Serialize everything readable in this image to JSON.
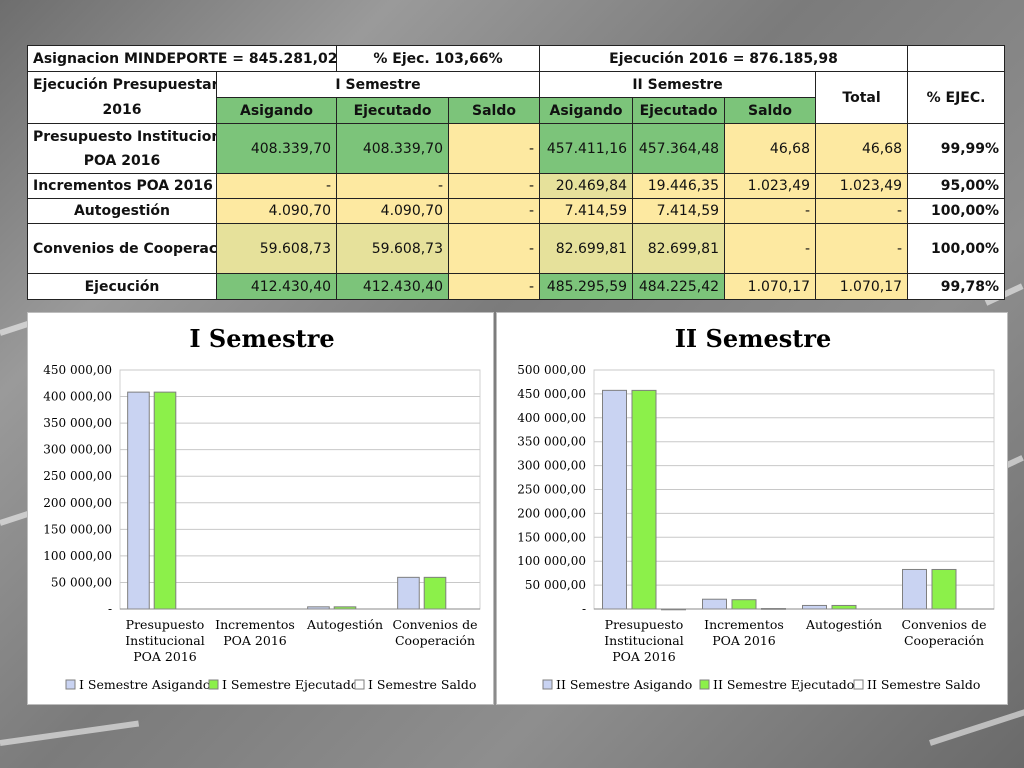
{
  "table": {
    "top_row": {
      "asignacion": "Asignacion MINDEPORTE = 845.281,02",
      "pct_ejec": "% Ejec. 103,66%",
      "ejecucion": "Ejecución 2016 = 876.185,98"
    },
    "header": {
      "row_label_line1": "Ejecución Presupuestaria",
      "row_label_line2": "2016",
      "sem1": "I Semestre",
      "sem2": "II Semestre",
      "total": "Total",
      "pct": "% EJEC.",
      "sub": [
        "Asigando",
        "Ejecutado",
        "Saldo",
        "Asigando",
        "Ejecutado",
        "Saldo"
      ]
    },
    "rows": [
      {
        "label_line1": "Presupuesto Institucional",
        "label_line2": "POA 2016",
        "values": [
          "408.339,70",
          "408.339,70",
          "-",
          "457.411,16",
          "457.364,48",
          "46,68",
          "46,68",
          "99,99%"
        ]
      },
      {
        "label_line1": "Incrementos POA 2016",
        "label_line2": "",
        "values": [
          "-",
          "-",
          "-",
          "20.469,84",
          "19.446,35",
          "1.023,49",
          "1.023,49",
          "95,00%"
        ]
      },
      {
        "label_line1": "Autogestión",
        "label_line2": "",
        "values": [
          "4.090,70",
          "4.090,70",
          "-",
          "7.414,59",
          "7.414,59",
          "-",
          "-",
          "100,00%"
        ]
      },
      {
        "label_line1": "Convenios de Cooperación",
        "label_line2": "",
        "values": [
          "59.608,73",
          "59.608,73",
          "-",
          "82.699,81",
          "82.699,81",
          "-",
          "-",
          "100,00%"
        ]
      },
      {
        "label_line1": "Ejecución",
        "label_line2": "",
        "values": [
          "412.430,40",
          "412.430,40",
          "-",
          "485.295,59",
          "484.225,42",
          "1.070,17",
          "1.070,17",
          "99,78%"
        ]
      }
    ]
  },
  "colors": {
    "asignado": "#c9d3f2",
    "ejecutado": "#8cf04a",
    "saldo": "#ffffff",
    "cell_green": "#7cc47a",
    "cell_yellow": "#fde9a1",
    "cell_khaki": "#e6e19b"
  },
  "chart_data": [
    {
      "type": "bar",
      "title": "I Semestre",
      "categories": [
        [
          "Presupuesto",
          "Institucional",
          "POA 2016"
        ],
        [
          "Incrementos",
          "POA 2016"
        ],
        [
          "Autogestión"
        ],
        [
          "Convenios de",
          "Cooperación"
        ]
      ],
      "series": [
        {
          "name": "I Semestre Asigando",
          "values": [
            408339.7,
            0,
            4090.7,
            59608.73
          ]
        },
        {
          "name": "I Semestre Ejecutado",
          "values": [
            408339.7,
            0,
            4090.7,
            59608.73
          ]
        },
        {
          "name": "I Semestre Saldo",
          "values": [
            0,
            0,
            0,
            0
          ]
        }
      ],
      "ylim": [
        0,
        450000
      ],
      "yticks": [
        "-",
        "50 000,00",
        "100 000,00",
        "150 000,00",
        "200 000,00",
        "250 000,00",
        "300 000,00",
        "350 000,00",
        "400 000,00",
        "450 000,00"
      ],
      "legend": "bottom",
      "grid": true
    },
    {
      "type": "bar",
      "title": "II Semestre",
      "categories": [
        [
          "Presupuesto",
          "Institucional",
          "POA 2016"
        ],
        [
          "Incrementos",
          "POA 2016"
        ],
        [
          "Autogestión"
        ],
        [
          "Convenios de",
          "Cooperación"
        ]
      ],
      "series": [
        {
          "name": "II Semestre Asigando",
          "values": [
            457411.16,
            20469.84,
            7414.59,
            82699.81
          ]
        },
        {
          "name": "II Semestre Ejecutado",
          "values": [
            457364.48,
            19446.35,
            7414.59,
            82699.81
          ]
        },
        {
          "name": "II Semestre Saldo",
          "values": [
            46.68,
            1023.49,
            0,
            0
          ]
        }
      ],
      "ylim": [
        0,
        500000
      ],
      "yticks": [
        "-",
        "50 000,00",
        "100 000,00",
        "150 000,00",
        "200 000,00",
        "250 000,00",
        "300 000,00",
        "350 000,00",
        "400 000,00",
        "450 000,00",
        "500 000,00"
      ],
      "legend": "bottom",
      "grid": true
    }
  ]
}
